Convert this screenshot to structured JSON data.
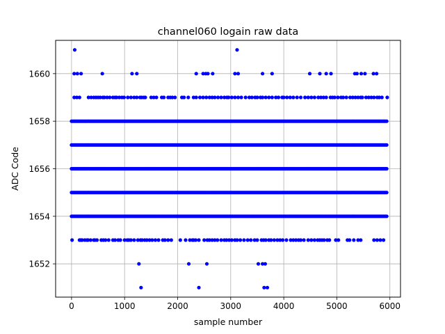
{
  "chart_data": {
    "type": "scatter",
    "title": "channel060 logain raw data",
    "xlabel": "sample number",
    "ylabel": "ADC Code",
    "xlim": [
      -300,
      6200
    ],
    "ylim": [
      1650.6,
      1661.4
    ],
    "x_ticks": [
      0,
      1000,
      2000,
      3000,
      4000,
      5000,
      6000
    ],
    "x_tick_labels": [
      "0",
      "1000",
      "2000",
      "3000",
      "4000",
      "5000",
      "6000"
    ],
    "y_ticks": [
      1652,
      1654,
      1656,
      1658,
      1660
    ],
    "y_tick_labels": [
      "1652",
      "1654",
      "1656",
      "1658",
      "1660"
    ],
    "grid": true,
    "marker_color": "#0000ff",
    "x_range": [
      0,
      5950
    ],
    "dense_levels": [
      1654,
      1655,
      1656,
      1657,
      1658
    ],
    "medium_levels": [
      {
        "y": 1653,
        "x": [
          10,
          150,
          170,
          190,
          200,
          250,
          290,
          310,
          360,
          420,
          440,
          480,
          560,
          600,
          640,
          700,
          780,
          820,
          880,
          920,
          1000,
          1050,
          1080,
          1120,
          1180,
          1250,
          1300,
          1330,
          1380,
          1420,
          1470,
          1520,
          1580,
          1640,
          1720,
          1760,
          1820,
          1880,
          2050,
          2150,
          2230,
          2280,
          2300,
          2340,
          2400,
          2500,
          2560,
          2600,
          2650,
          2700,
          2750,
          2820,
          2880,
          2920,
          2970,
          3020,
          3080,
          3120,
          3180,
          3250,
          3320,
          3380,
          3450,
          3500,
          3580,
          3620,
          3660,
          3720,
          3760,
          3820,
          3880,
          3930,
          3980,
          4050,
          4130,
          4180,
          4230,
          4280,
          4320,
          4380,
          4460,
          4520,
          4580,
          4640,
          4680,
          4720,
          4760,
          4820,
          4860,
          4980,
          5030,
          5200,
          5240,
          5320,
          5400,
          5450,
          5700,
          5760,
          5820,
          5880
        ]
      },
      {
        "y": 1659,
        "x": [
          50,
          100,
          150,
          320,
          370,
          420,
          460,
          500,
          540,
          590,
          620,
          670,
          720,
          780,
          820,
          850,
          900,
          950,
          990,
          1060,
          1120,
          1180,
          1230,
          1290,
          1320,
          1360,
          1390,
          1500,
          1550,
          1600,
          1700,
          1740,
          1820,
          1860,
          1900,
          1950,
          2080,
          2120,
          2200,
          2300,
          2350,
          2420,
          2480,
          2540,
          2600,
          2650,
          2700,
          2760,
          2820,
          2880,
          2930,
          2960,
          3020,
          3080,
          3140,
          3200,
          3280,
          3350,
          3400,
          3460,
          3500,
          3560,
          3600,
          3660,
          3720,
          3780,
          3850,
          3900,
          3970,
          4000,
          4060,
          4120,
          4180,
          4250,
          4320,
          4400,
          4460,
          4520,
          4580,
          4650,
          4700,
          4750,
          4800,
          4880,
          4920,
          4960,
          5020,
          5080,
          5120,
          5180,
          5250,
          5300,
          5350,
          5400,
          5450,
          5480,
          5550,
          5600,
          5650,
          5700,
          5760,
          5800,
          5850,
          5950
        ]
      }
    ],
    "sparse_points": [
      {
        "x": 60,
        "y": 1661
      },
      {
        "x": 3120,
        "y": 1661
      },
      {
        "x": 50,
        "y": 1660
      },
      {
        "x": 110,
        "y": 1660
      },
      {
        "x": 180,
        "y": 1660
      },
      {
        "x": 580,
        "y": 1660
      },
      {
        "x": 1140,
        "y": 1660
      },
      {
        "x": 1230,
        "y": 1660
      },
      {
        "x": 2350,
        "y": 1660
      },
      {
        "x": 2480,
        "y": 1660
      },
      {
        "x": 2530,
        "y": 1660
      },
      {
        "x": 2570,
        "y": 1660
      },
      {
        "x": 2660,
        "y": 1660
      },
      {
        "x": 3080,
        "y": 1660
      },
      {
        "x": 3140,
        "y": 1660
      },
      {
        "x": 3600,
        "y": 1660
      },
      {
        "x": 3780,
        "y": 1660
      },
      {
        "x": 4490,
        "y": 1660
      },
      {
        "x": 4680,
        "y": 1660
      },
      {
        "x": 4800,
        "y": 1660
      },
      {
        "x": 4890,
        "y": 1660
      },
      {
        "x": 5340,
        "y": 1660
      },
      {
        "x": 5380,
        "y": 1660
      },
      {
        "x": 5460,
        "y": 1660
      },
      {
        "x": 5530,
        "y": 1660
      },
      {
        "x": 5690,
        "y": 1660
      },
      {
        "x": 5750,
        "y": 1660
      },
      {
        "x": 1270,
        "y": 1652
      },
      {
        "x": 2210,
        "y": 1652
      },
      {
        "x": 2550,
        "y": 1652
      },
      {
        "x": 3520,
        "y": 1652
      },
      {
        "x": 3600,
        "y": 1652
      },
      {
        "x": 3650,
        "y": 1652
      },
      {
        "x": 1310,
        "y": 1651
      },
      {
        "x": 2400,
        "y": 1651
      },
      {
        "x": 3630,
        "y": 1651
      },
      {
        "x": 3690,
        "y": 1651
      }
    ]
  }
}
